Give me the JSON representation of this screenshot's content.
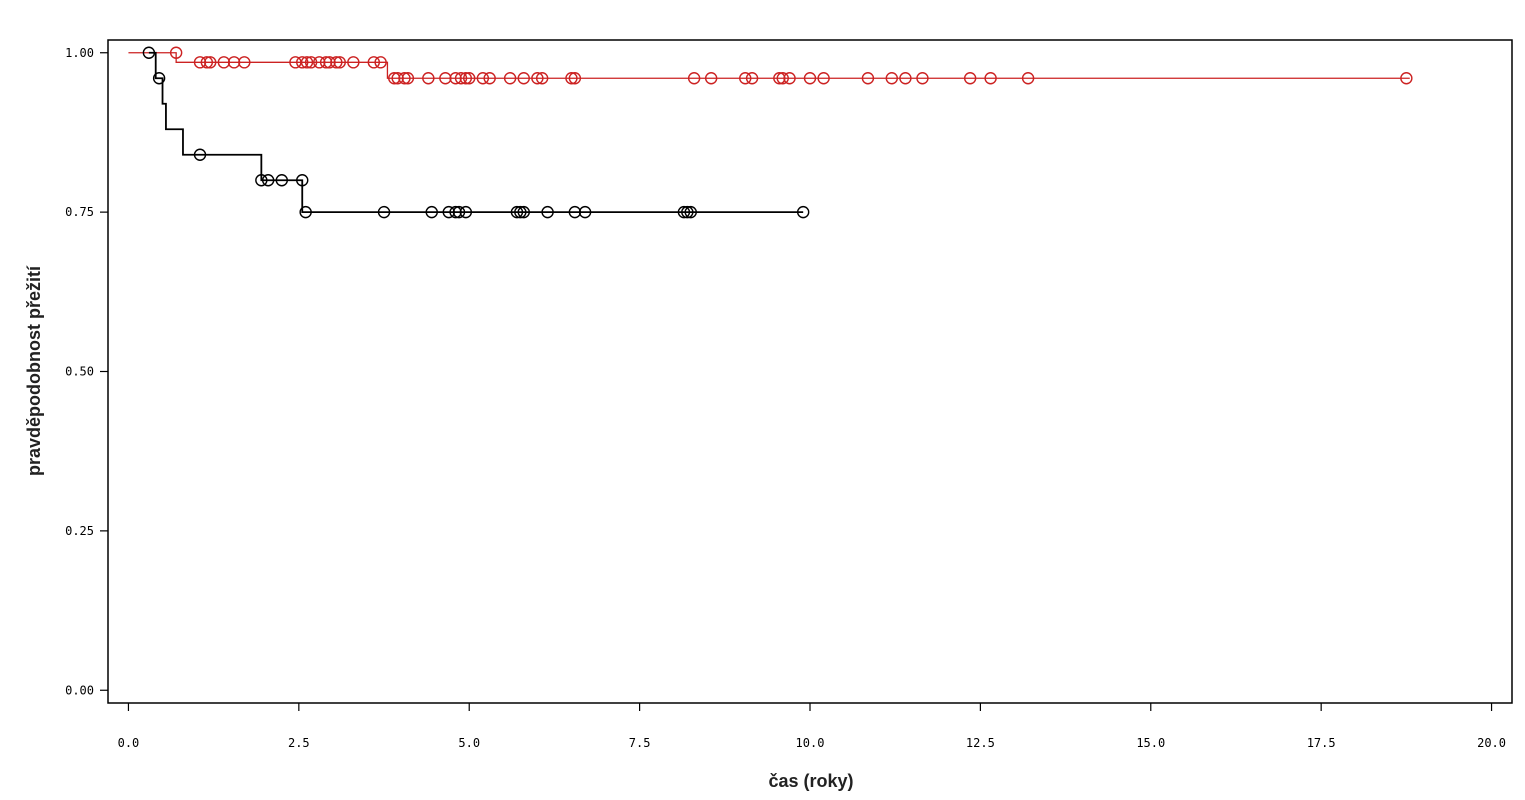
{
  "chart_data": {
    "type": "line",
    "subtype": "kaplan-meier",
    "title": "",
    "xlabel": "čas (roky)",
    "ylabel": "pravděpodobnost přežití",
    "xlim": [
      -0.3,
      20.3
    ],
    "ylim": [
      -0.02,
      1.02
    ],
    "x_ticks": [
      0,
      2.5,
      5,
      7.5,
      10,
      12.5,
      15,
      17.5,
      20
    ],
    "x_tick_labels": [
      "0.0",
      "2.5",
      "5.0",
      "7.5",
      "10.0",
      "12.5",
      "15.0",
      "17.5",
      "20.0"
    ],
    "y_ticks": [
      0,
      0.25,
      0.5,
      0.75,
      1
    ],
    "y_tick_labels": [
      "0.00",
      "0.25",
      "0.50",
      "0.75",
      "1.00"
    ],
    "grid": false,
    "legend": "none",
    "series": [
      {
        "color": "#cc2222",
        "start_x": 0,
        "end_x": 18.8,
        "steps": [
          {
            "x": 0,
            "y": 1.0
          },
          {
            "x": 0.7,
            "y": 0.985
          },
          {
            "x": 3.8,
            "y": 0.96
          }
        ],
        "censored": [
          [
            0.7,
            1.0
          ],
          [
            1.05,
            0.985
          ],
          [
            1.15,
            0.985
          ],
          [
            1.2,
            0.985
          ],
          [
            1.4,
            0.985
          ],
          [
            1.55,
            0.985
          ],
          [
            1.7,
            0.985
          ],
          [
            2.45,
            0.985
          ],
          [
            2.55,
            0.985
          ],
          [
            2.62,
            0.985
          ],
          [
            2.68,
            0.985
          ],
          [
            2.8,
            0.985
          ],
          [
            2.9,
            0.985
          ],
          [
            2.95,
            0.985
          ],
          [
            3.05,
            0.985
          ],
          [
            3.1,
            0.985
          ],
          [
            3.3,
            0.985
          ],
          [
            3.6,
            0.985
          ],
          [
            3.7,
            0.985
          ],
          [
            3.9,
            0.96
          ],
          [
            3.95,
            0.96
          ],
          [
            4.05,
            0.96
          ],
          [
            4.1,
            0.96
          ],
          [
            4.4,
            0.96
          ],
          [
            4.65,
            0.96
          ],
          [
            4.8,
            0.96
          ],
          [
            4.88,
            0.96
          ],
          [
            4.95,
            0.96
          ],
          [
            5.0,
            0.96
          ],
          [
            5.2,
            0.96
          ],
          [
            5.3,
            0.96
          ],
          [
            5.6,
            0.96
          ],
          [
            5.8,
            0.96
          ],
          [
            6.0,
            0.96
          ],
          [
            6.07,
            0.96
          ],
          [
            6.5,
            0.96
          ],
          [
            6.55,
            0.96
          ],
          [
            8.3,
            0.96
          ],
          [
            8.55,
            0.96
          ],
          [
            9.05,
            0.96
          ],
          [
            9.15,
            0.96
          ],
          [
            9.55,
            0.96
          ],
          [
            9.6,
            0.96
          ],
          [
            9.7,
            0.96
          ],
          [
            10.0,
            0.96
          ],
          [
            10.2,
            0.96
          ],
          [
            10.85,
            0.96
          ],
          [
            11.2,
            0.96
          ],
          [
            11.4,
            0.96
          ],
          [
            11.65,
            0.96
          ],
          [
            12.35,
            0.96
          ],
          [
            12.65,
            0.96
          ],
          [
            13.2,
            0.96
          ],
          [
            18.75,
            0.96
          ]
        ]
      },
      {
        "color": "#000000",
        "start_x": 0.3,
        "end_x": 9.9,
        "steps": [
          {
            "x": 0.3,
            "y": 1.0
          },
          {
            "x": 0.4,
            "y": 0.96
          },
          {
            "x": 0.5,
            "y": 0.92
          },
          {
            "x": 0.55,
            "y": 0.88
          },
          {
            "x": 0.8,
            "y": 0.84
          },
          {
            "x": 1.95,
            "y": 0.8
          },
          {
            "x": 2.55,
            "y": 0.75
          }
        ],
        "censored": [
          [
            0.3,
            1.0
          ],
          [
            0.45,
            0.96
          ],
          [
            1.05,
            0.84
          ],
          [
            1.95,
            0.8
          ],
          [
            2.05,
            0.8
          ],
          [
            2.25,
            0.8
          ],
          [
            2.55,
            0.8
          ],
          [
            2.6,
            0.75
          ],
          [
            3.75,
            0.75
          ],
          [
            4.45,
            0.75
          ],
          [
            4.7,
            0.75
          ],
          [
            4.8,
            0.75
          ],
          [
            4.85,
            0.75
          ],
          [
            4.95,
            0.75
          ],
          [
            5.7,
            0.75
          ],
          [
            5.75,
            0.75
          ],
          [
            5.8,
            0.75
          ],
          [
            6.15,
            0.75
          ],
          [
            6.55,
            0.75
          ],
          [
            6.7,
            0.75
          ],
          [
            8.15,
            0.75
          ],
          [
            8.2,
            0.75
          ],
          [
            8.25,
            0.75
          ],
          [
            9.9,
            0.75
          ]
        ]
      }
    ]
  }
}
